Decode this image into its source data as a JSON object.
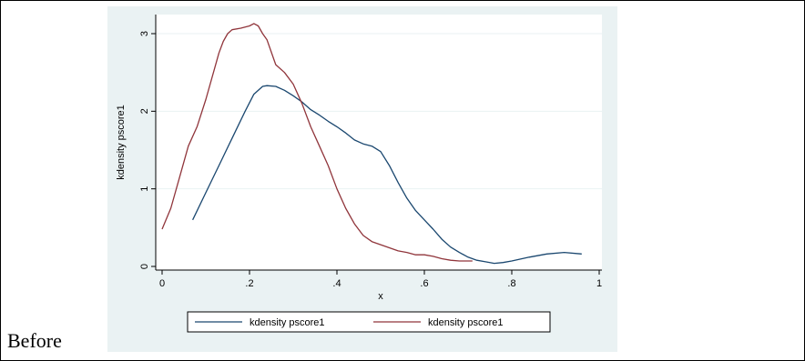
{
  "caption": "Before",
  "chart_data": {
    "type": "line",
    "title": "",
    "xlabel": "x",
    "ylabel": "kdensity pscore1",
    "xlim": [
      0,
      1
    ],
    "ylim": [
      0,
      3.2
    ],
    "xticks": [
      0,
      0.2,
      0.4,
      0.6,
      0.8,
      1
    ],
    "xtick_labels": [
      "0",
      ".2",
      ".4",
      ".6",
      ".8",
      "1"
    ],
    "yticks": [
      0,
      1,
      2,
      3
    ],
    "ytick_labels": [
      "0",
      "1",
      "2",
      "3"
    ],
    "grid": true,
    "legend_position": "bottom",
    "colors": {
      "background": "#eaf2f3",
      "plot": "#ffffff",
      "grid": "#eaf2f3"
    },
    "series": [
      {
        "name": "kdensity pscore1",
        "color": "#1a476f",
        "x": [
          0.07,
          0.1,
          0.13,
          0.16,
          0.19,
          0.21,
          0.23,
          0.24,
          0.26,
          0.28,
          0.3,
          0.32,
          0.34,
          0.36,
          0.38,
          0.4,
          0.42,
          0.44,
          0.46,
          0.48,
          0.5,
          0.52,
          0.54,
          0.56,
          0.58,
          0.6,
          0.62,
          0.64,
          0.66,
          0.68,
          0.7,
          0.72,
          0.74,
          0.76,
          0.78,
          0.8,
          0.84,
          0.88,
          0.92,
          0.96
        ],
        "y": [
          0.6,
          0.95,
          1.3,
          1.65,
          2.0,
          2.22,
          2.32,
          2.33,
          2.32,
          2.27,
          2.2,
          2.12,
          2.02,
          1.95,
          1.87,
          1.8,
          1.72,
          1.63,
          1.58,
          1.55,
          1.48,
          1.3,
          1.08,
          0.88,
          0.72,
          0.6,
          0.48,
          0.35,
          0.25,
          0.18,
          0.12,
          0.08,
          0.06,
          0.04,
          0.05,
          0.07,
          0.12,
          0.16,
          0.18,
          0.16
        ]
      },
      {
        "name": "kdensity pscore1",
        "color": "#90353b",
        "x": [
          0.0,
          0.02,
          0.04,
          0.06,
          0.08,
          0.1,
          0.12,
          0.13,
          0.14,
          0.15,
          0.16,
          0.18,
          0.2,
          0.21,
          0.22,
          0.23,
          0.24,
          0.26,
          0.28,
          0.3,
          0.32,
          0.34,
          0.36,
          0.38,
          0.4,
          0.42,
          0.44,
          0.46,
          0.48,
          0.5,
          0.52,
          0.54,
          0.56,
          0.58,
          0.6,
          0.62,
          0.64,
          0.66,
          0.68,
          0.7,
          0.71
        ],
        "y": [
          0.48,
          0.75,
          1.15,
          1.55,
          1.8,
          2.15,
          2.55,
          2.75,
          2.9,
          3.0,
          3.05,
          3.07,
          3.1,
          3.13,
          3.1,
          3.0,
          2.92,
          2.6,
          2.5,
          2.35,
          2.1,
          1.8,
          1.55,
          1.3,
          1.0,
          0.75,
          0.55,
          0.4,
          0.32,
          0.28,
          0.24,
          0.2,
          0.18,
          0.15,
          0.15,
          0.13,
          0.1,
          0.08,
          0.07,
          0.07,
          0.07
        ]
      }
    ]
  }
}
